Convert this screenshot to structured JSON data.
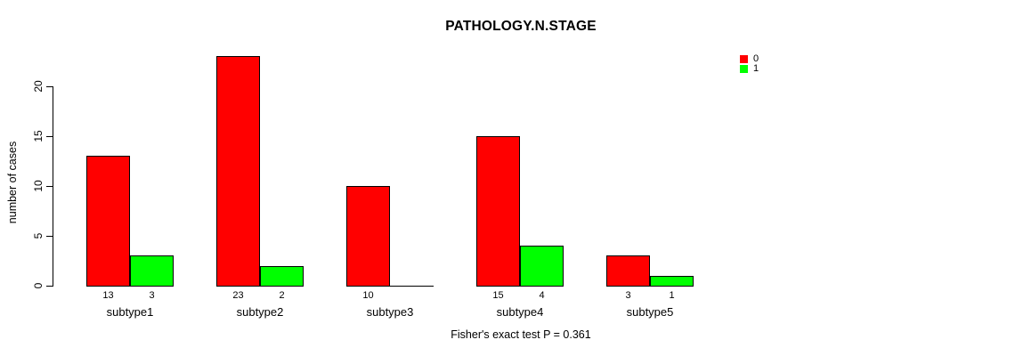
{
  "title": "PATHOLOGY.N.STAGE",
  "ylabel": "number of cases",
  "caption": "Fisher's exact test P = 0.361",
  "colors": {
    "series0": "#FF0000",
    "series1": "#00FF00",
    "axis": "#000000",
    "background": "#FFFFFF"
  },
  "legend": {
    "position": "topright",
    "items": [
      {
        "label": "0",
        "color": "#FF0000"
      },
      {
        "label": "1",
        "color": "#00FF00"
      }
    ]
  },
  "chart_data": {
    "type": "bar",
    "layout": "grouped",
    "title": "PATHOLOGY.N.STAGE",
    "xlabel": "",
    "ylabel": "number of cases",
    "categories": [
      "subtype1",
      "subtype2",
      "subtype3",
      "subtype4",
      "subtype5"
    ],
    "series": [
      {
        "name": "0",
        "color": "#FF0000",
        "values": [
          13,
          23,
          10,
          15,
          3
        ]
      },
      {
        "name": "1",
        "color": "#00FF00",
        "values": [
          3,
          2,
          0,
          4,
          1
        ]
      }
    ],
    "bar_value_labels": [
      [
        "13",
        "3"
      ],
      [
        "23",
        "2"
      ],
      [
        "10",
        ""
      ],
      [
        "15",
        "4"
      ],
      [
        "3",
        "1"
      ]
    ],
    "ylim": [
      0,
      20
    ],
    "yticks": [
      0,
      5,
      10,
      15,
      20
    ],
    "grid": false,
    "legend_position": "topright",
    "annotation": "Fisher's exact test P = 0.361"
  }
}
